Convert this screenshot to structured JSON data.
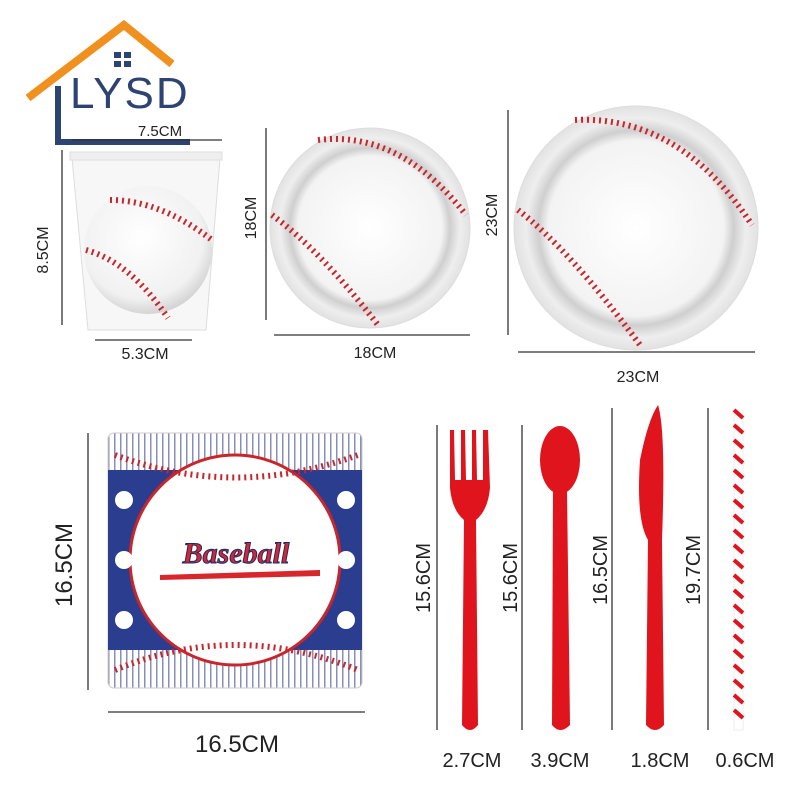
{
  "logo": {
    "text": "LYSD",
    "colors": {
      "roof": "#f0901e",
      "letters": "#2d4473"
    }
  },
  "products": {
    "cup": {
      "width": "7.5CM",
      "height": "8.5CM",
      "bottom": "5.3CM"
    },
    "small_plate": {
      "height": "18CM",
      "width": "18CM"
    },
    "large_plate": {
      "height": "23CM",
      "width": "23CM"
    },
    "napkin": {
      "height": "16.5CM",
      "width": "16.5CM",
      "brand_text": "Baseball"
    },
    "fork": {
      "length": "15.6CM",
      "width": "2.7CM"
    },
    "spoon": {
      "length": "15.6CM",
      "width": "3.9CM"
    },
    "knife": {
      "length": "16.5CM",
      "width": "1.8CM"
    },
    "straw": {
      "length": "19.7CM",
      "width": "0.6CM"
    }
  },
  "colors": {
    "stitch": "#c8262b",
    "cutlery": "#e0141c",
    "napkin_blue": "#2b3d8f"
  }
}
